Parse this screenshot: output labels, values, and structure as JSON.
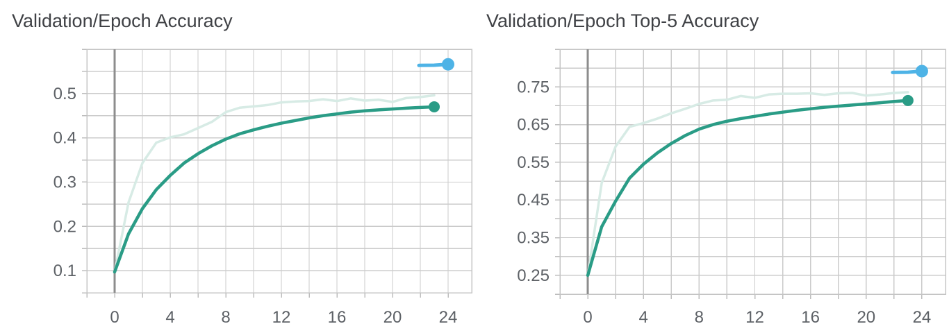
{
  "colors": {
    "background": "#ffffff",
    "title_text": "#3f4145",
    "tick_text": "#5d6166",
    "grid_line": "#cbcbcb",
    "axis_frame": "#c5c5c5",
    "axis_tick": "#bdbdbd",
    "zero_line": "#8d8d8d",
    "teal": "#2a9c86",
    "teal_faded": "#d7ebe5",
    "blue": "#4eb3e6"
  },
  "chart_data": [
    {
      "type": "line",
      "title": "Validation/Epoch Accuracy",
      "xlabel": "",
      "ylabel": "",
      "xlim": [
        -2,
        25.7
      ],
      "ylim": [
        0.05,
        0.6
      ],
      "x_grid_step": 2,
      "y_grid_step": 0.05,
      "grid": true,
      "legend": "none",
      "zero_line_x": 0,
      "x_ticks": [
        0,
        4,
        8,
        12,
        16,
        20,
        24
      ],
      "x_tick_labels": [
        "0",
        "4",
        "8",
        "12",
        "16",
        "20",
        "24"
      ],
      "y_ticks": [
        0.1,
        0.2,
        0.3,
        0.4,
        0.5
      ],
      "y_tick_labels": [
        "0.1",
        "0.2",
        "0.3",
        "0.4",
        "0.5"
      ],
      "epochs": [
        0,
        1,
        2,
        3,
        4,
        5,
        6,
        7,
        8,
        9,
        10,
        11,
        12,
        13,
        14,
        15,
        16,
        17,
        18,
        19,
        20,
        21,
        22,
        23
      ],
      "series": [
        {
          "name": "epoch-accuracy-raw",
          "color": "teal_faded",
          "width": 3.5,
          "end_dot": false,
          "values": [
            0.097,
            0.254,
            0.343,
            0.389,
            0.401,
            0.408,
            0.422,
            0.436,
            0.458,
            0.468,
            0.471,
            0.474,
            0.48,
            0.482,
            0.483,
            0.487,
            0.483,
            0.489,
            0.484,
            0.486,
            0.481,
            0.49,
            0.492,
            0.496
          ]
        },
        {
          "name": "epoch-accuracy-smoothed",
          "color": "teal",
          "width": 4.5,
          "end_dot": true,
          "dot_radius": 8,
          "values": [
            0.097,
            0.183,
            0.24,
            0.283,
            0.315,
            0.343,
            0.364,
            0.382,
            0.397,
            0.409,
            0.418,
            0.426,
            0.433,
            0.439,
            0.445,
            0.45,
            0.454,
            0.458,
            0.461,
            0.463,
            0.465,
            0.467,
            0.4685,
            0.47
          ]
        },
        {
          "name": "comparison-run-segment",
          "color": "blue",
          "width": 5,
          "end_dot": true,
          "dot_radius": 9,
          "x": [
            21.9,
            23,
            24
          ],
          "values": [
            0.5635,
            0.564,
            0.566
          ]
        }
      ]
    },
    {
      "type": "line",
      "title": "Validation/Epoch Top-5 Accuracy",
      "xlabel": "",
      "ylabel": "",
      "xlim": [
        -2,
        25.7
      ],
      "ylim": [
        0.2,
        0.85
      ],
      "x_grid_step": 2,
      "y_grid_step": 0.05,
      "grid": true,
      "legend": "none",
      "zero_line_x": 0,
      "x_ticks": [
        0,
        4,
        8,
        12,
        16,
        20,
        24
      ],
      "x_tick_labels": [
        "0",
        "4",
        "8",
        "12",
        "16",
        "20",
        "24"
      ],
      "y_ticks": [
        0.25,
        0.35,
        0.45,
        0.55,
        0.65,
        0.75
      ],
      "y_tick_labels": [
        "0.25",
        "0.35",
        "0.45",
        "0.55",
        "0.65",
        "0.75"
      ],
      "epochs": [
        0,
        1,
        2,
        3,
        4,
        5,
        6,
        7,
        8,
        9,
        10,
        11,
        12,
        13,
        14,
        15,
        16,
        17,
        18,
        19,
        20,
        21,
        22,
        23
      ],
      "series": [
        {
          "name": "epoch-top5-accuracy-raw",
          "color": "teal_faded",
          "width": 3.5,
          "end_dot": false,
          "values": [
            0.25,
            0.495,
            0.592,
            0.644,
            0.654,
            0.666,
            0.68,
            0.692,
            0.705,
            0.714,
            0.716,
            0.726,
            0.721,
            0.73,
            0.732,
            0.732,
            0.733,
            0.729,
            0.733,
            0.734,
            0.727,
            0.73,
            0.734,
            0.736
          ]
        },
        {
          "name": "epoch-top5-accuracy-smoothed",
          "color": "teal",
          "width": 4.5,
          "end_dot": true,
          "dot_radius": 8,
          "values": [
            0.25,
            0.379,
            0.447,
            0.508,
            0.545,
            0.575,
            0.6,
            0.621,
            0.638,
            0.65,
            0.659,
            0.666,
            0.672,
            0.678,
            0.683,
            0.688,
            0.692,
            0.696,
            0.699,
            0.702,
            0.705,
            0.708,
            0.7115,
            0.714
          ]
        },
        {
          "name": "comparison-run-segment",
          "color": "blue",
          "width": 5,
          "end_dot": true,
          "dot_radius": 9,
          "x": [
            21.9,
            23,
            24
          ],
          "values": [
            0.7885,
            0.789,
            0.792
          ]
        }
      ]
    }
  ]
}
